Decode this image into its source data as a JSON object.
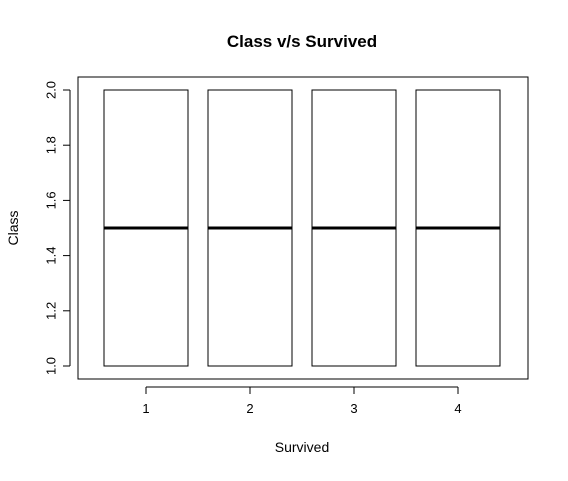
{
  "chart_data": {
    "type": "boxplot",
    "title": "Class v/s Survived",
    "xlabel": "Survived",
    "ylabel": "Class",
    "categories": [
      "1",
      "2",
      "3",
      "4"
    ],
    "boxes": [
      {
        "category": "1",
        "min": 1.0,
        "q1": 1.0,
        "median": 1.5,
        "q3": 2.0,
        "max": 2.0
      },
      {
        "category": "2",
        "min": 1.0,
        "q1": 1.0,
        "median": 1.5,
        "q3": 2.0,
        "max": 2.0
      },
      {
        "category": "3",
        "min": 1.0,
        "q1": 1.0,
        "median": 1.5,
        "q3": 2.0,
        "max": 2.0
      },
      {
        "category": "4",
        "min": 1.0,
        "q1": 1.0,
        "median": 1.5,
        "q3": 2.0,
        "max": 2.0
      }
    ],
    "ylim": [
      0.96,
      2.04
    ],
    "yticks": [
      "1.0",
      "1.2",
      "1.4",
      "1.6",
      "1.8",
      "2.0"
    ],
    "xticks": [
      "1",
      "2",
      "3",
      "4"
    ],
    "grid": false,
    "legend": "none"
  }
}
